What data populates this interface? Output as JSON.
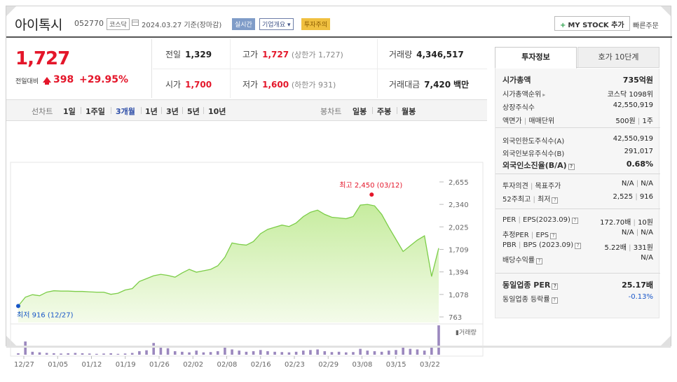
{
  "header": {
    "name": "아이톡시",
    "code": "052770",
    "market": "코스닥",
    "date_text": "2024.03.27  기준(장마감)",
    "realtime": "실시간",
    "corp_info": "기업개요",
    "warning": "투자주의",
    "mystock": "MY STOCK 추가",
    "quick_order": "빠른주문"
  },
  "price": {
    "now": "1,727",
    "prev_label": "전일대비",
    "change": "398",
    "change_pct": "+29.95%"
  },
  "quote": {
    "prev_label": "전일",
    "prev_val": "1,329",
    "high_label": "고가",
    "high_val": "1,727",
    "high_sub": "(상한가 1,727)",
    "volume_label": "거래량",
    "volume_val": "4,346,517",
    "open_label": "시가",
    "open_val": "1,700",
    "low_label": "저가",
    "low_val": "1,600",
    "low_sub": "(하한가 931)",
    "amount_label": "거래대금",
    "amount_val": "7,420",
    "amount_unit": "백만"
  },
  "chart_tabs": {
    "line_label": "선차트",
    "periods": [
      "1일",
      "1주일",
      "3개월",
      "1년",
      "3년",
      "5년",
      "10년"
    ],
    "selected": "3개월",
    "candle_label": "봉차트",
    "candles": [
      "일봉",
      "주봉",
      "월봉"
    ]
  },
  "chart_data": {
    "type": "area",
    "title": "",
    "x_ticks": [
      "12/27",
      "01/05",
      "01/12",
      "01/19",
      "01/26",
      "02/02",
      "02/08",
      "02/16",
      "02/23",
      "02/29",
      "03/08",
      "03/15",
      "03/22"
    ],
    "y_ticks": [
      2655,
      2340,
      2025,
      1709,
      1394,
      1078,
      763
    ],
    "ylim": [
      763,
      2655
    ],
    "series": [
      {
        "values": [
          916,
          1040,
          1075,
          1060,
          1110,
          1130,
          1125,
          1125,
          1120,
          1120,
          1115,
          1110,
          1110,
          1080,
          1095,
          1140,
          1160,
          1260,
          1300,
          1340,
          1360,
          1345,
          1320,
          1380,
          1430,
          1390,
          1410,
          1430,
          1480,
          1600,
          1800,
          1780,
          1770,
          1820,
          1930,
          1990,
          2020,
          2050,
          2030,
          2080,
          2170,
          2230,
          2260,
          2200,
          2160,
          2150,
          2140,
          2170,
          2330,
          2340,
          2320,
          2200,
          2020,
          1850,
          1680,
          1760,
          1840,
          1900,
          1330,
          1727
        ]
      }
    ],
    "high_label": "최고 2,450 (03/12)",
    "low_label": "최저 916 (12/27)",
    "volume_label": "거래량",
    "volume": [
      5,
      45,
      10,
      8,
      6,
      5,
      4,
      5,
      6,
      5,
      4,
      3,
      4,
      5,
      3,
      4,
      6,
      12,
      15,
      40,
      28,
      22,
      12,
      10,
      8,
      14,
      8,
      9,
      12,
      30,
      18,
      14,
      10,
      12,
      16,
      12,
      10,
      9,
      8,
      10,
      14,
      16,
      18,
      12,
      9,
      10,
      8,
      9,
      20,
      14,
      12,
      10,
      14,
      16,
      25,
      20,
      18,
      14,
      30,
      100
    ]
  },
  "panel": {
    "tab_active": "투자정보",
    "tab_other": "호가 10단계",
    "s1": [
      {
        "label": "시가총액",
        "value": "735억원",
        "strong": true
      },
      {
        "label": "시가총액순위",
        "value": "코스닥 1098위",
        "arrow": true
      },
      {
        "label": "상장주식수",
        "value": "42,550,919"
      },
      {
        "label": "액면가",
        "label2": "매매단위",
        "value": "500원",
        "value2": "1주"
      }
    ],
    "s2": [
      {
        "label": "외국인한도주식수(A)",
        "value": "42,550,919"
      },
      {
        "label": "외국인보유주식수(B)",
        "value": "291,017"
      },
      {
        "label": "외국인소진율(B/A)",
        "value": "0.68%",
        "strong": true,
        "help": true
      }
    ],
    "s3": [
      {
        "label": "투자의견",
        "label2": "목표주가",
        "value": "N/A",
        "value2": "N/A"
      },
      {
        "label": "52주최고",
        "label2": "최저",
        "value": "2,525",
        "value2": "916",
        "help": true
      }
    ],
    "s4": [
      {
        "label": "PER",
        "label2": "EPS(2023.09)",
        "value": "172.70배",
        "value2": "10원",
        "help": true
      },
      {
        "label": "추정PER",
        "label2": "EPS",
        "value": "N/A",
        "value2": "N/A",
        "help": true
      },
      {
        "label": "PBR",
        "label2": "BPS (2023.09)",
        "value": "5.22배",
        "value2": "331원",
        "help": true
      },
      {
        "label": "배당수익률",
        "value": "N/A",
        "help": true
      }
    ],
    "s5": [
      {
        "label": "동일업종 PER",
        "value": "25.17배",
        "strong": true,
        "help": true
      },
      {
        "label": "동일업종 등락률",
        "value": "-0.13%",
        "help": true,
        "blue": true
      }
    ]
  },
  "colors": {
    "up": "#e4162a",
    "line": "#7ccd48",
    "area": "#dff5c8",
    "volume": "#9b88be"
  }
}
